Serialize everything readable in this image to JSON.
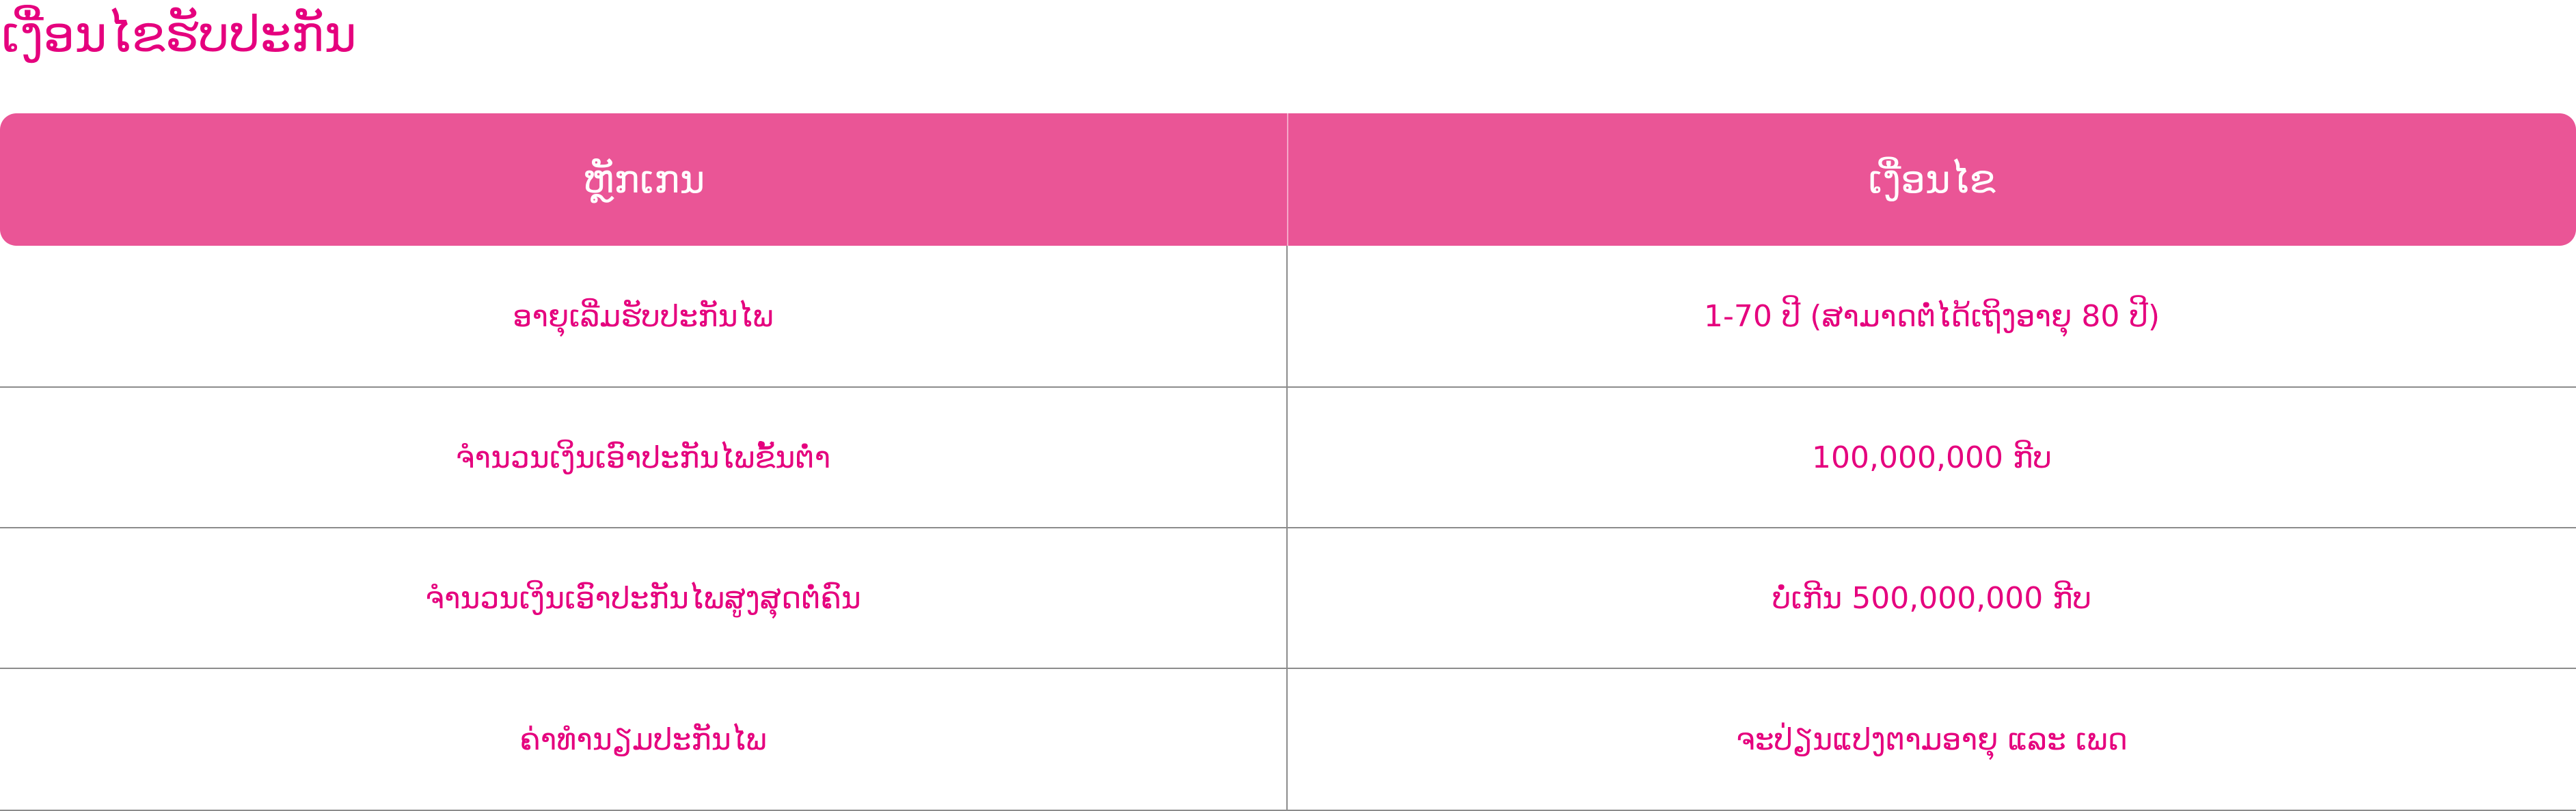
{
  "page": {
    "title": "ເງື່ອນໄຂຮັບປະກັນ"
  },
  "table": {
    "headers": [
      "ຫຼັກເກນ",
      "ເງື່ອນໄຂ"
    ],
    "rows": [
      [
        "ອາຍຸເລີ່ມຮັບປະກັນໄພ",
        "1-70 ປີ (ສາມາດຕໍ່ໄດ້ເຖິງອາຍຸ 80 ປີ)"
      ],
      [
        "ຈຳນວນເງິນເອົາປະກັນໄພຂັ້ນຕ່ຳ",
        "100,000,000 ກີບ"
      ],
      [
        "ຈຳນວນເງິນເອົາປະກັນໄພສູງສຸດຕໍ່ຄົນ",
        "ບໍ່ເກີນ 500,000,000 ກີບ"
      ],
      [
        "ຄ່າທຳນຽມປະກັນໄພ",
        "ຈະປ່ຽນແປງຕາມອາຍຸ ແລະ ເພດ"
      ]
    ]
  },
  "colors": {
    "accent_pink": "#e5007e",
    "header_background": "#ea5596",
    "header_text": "#ffffff",
    "row_divider": "#8c8c8c"
  }
}
